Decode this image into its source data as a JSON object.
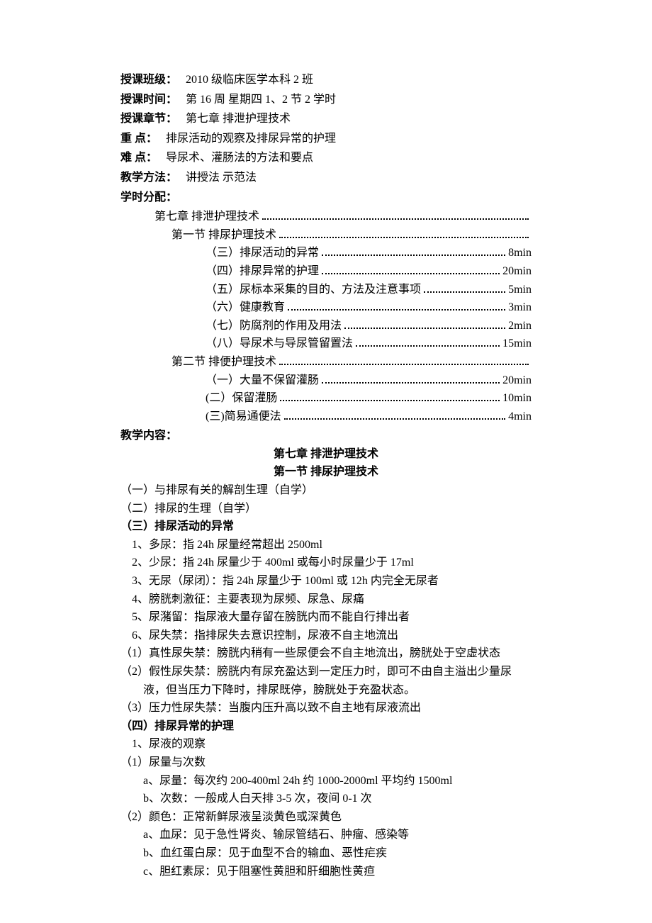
{
  "header": {
    "class_label": "授课班级：",
    "class_value": "2010 级临床医学本科 2 班",
    "time_label": "授课时间：",
    "time_value": "第 16 周  星期四  1、2 节     2 学时",
    "chapter_label": "授课章节：",
    "chapter_value": "第七章    排泄护理技术",
    "focus_label": "重        点：",
    "focus_value": "排尿活动的观察及排尿异常的护理",
    "difficulty_label": "难        点：",
    "difficulty_value": "导尿术、灌肠法的方法和要点",
    "method_label": "教学方法：",
    "method_value": "讲授法        示范法",
    "alloc_label": "学时分配："
  },
  "toc": [
    {
      "indent": 1,
      "text": "第七章    排泄护理技术",
      "time": ""
    },
    {
      "indent": 2,
      "text": "第一节    排尿护理技术",
      "time": ""
    },
    {
      "indent": 3,
      "text": "（三）排尿活动的异常",
      "time": "8min"
    },
    {
      "indent": 3,
      "text": "（四）排尿异常的护理",
      "time": "20min"
    },
    {
      "indent": 3,
      "text": "（五）尿标本采集的目的、方法及注意事项",
      "time": "5min"
    },
    {
      "indent": 3,
      "text": "（六）健康教育",
      "time": "3min"
    },
    {
      "indent": 3,
      "text": "（七）防腐剂的作用及用法",
      "time": "2min"
    },
    {
      "indent": 3,
      "text": "（八）导尿术与导尿管留置法",
      "time": "15min"
    },
    {
      "indent": 2,
      "text": "第二节    排便护理技术",
      "time": ""
    },
    {
      "indent": 3,
      "text": "（一）大量不保留灌肠",
      "time": "20min"
    },
    {
      "indent": 3,
      "text": "(二）保留灌肠",
      "time": "10min"
    },
    {
      "indent": 3,
      "text": "(三)简易通便法",
      "time": "4min"
    }
  ],
  "content_label": "教学内容：",
  "titles": {
    "chapter": "第七章    排泄护理技术",
    "section": "第一节    排尿护理技术"
  },
  "body": [
    {
      "pad": 0,
      "bold": false,
      "text": "（一）与排尿有关的解剖生理（自学）"
    },
    {
      "pad": 0,
      "bold": false,
      "text": "（二）排尿的生理（自学）"
    },
    {
      "pad": 0,
      "bold": true,
      "text": "（三）排尿活动的异常"
    },
    {
      "pad": 1,
      "bold": false,
      "text": "1、多尿：指 24h 尿量经常超出 2500ml"
    },
    {
      "pad": 1,
      "bold": false,
      "text": "2、少尿：指 24h 尿量少于 400ml 或每小时尿量少于 17ml"
    },
    {
      "pad": 1,
      "bold": false,
      "text": "3、无尿（尿闭）：指 24h 尿量少于 100ml 或 12h 内完全无尿者"
    },
    {
      "pad": 1,
      "bold": false,
      "text": "4、膀胱刺激征：主要表现为尿频、尿急、尿痛"
    },
    {
      "pad": 1,
      "bold": false,
      "text": "5、尿潴留：指尿液大量存留在膀胱内而不能自行排出者"
    },
    {
      "pad": 1,
      "bold": false,
      "text": "6、尿失禁：指排尿失去意识控制，尿液不自主地流出"
    },
    {
      "pad": 0,
      "bold": false,
      "text": "（1）真性尿失禁：膀胱内稍有一些尿便会不自主地流出，膀胱处于空虚状态"
    },
    {
      "pad": 0,
      "bold": false,
      "text": "（2）假性尿失禁：膀胱内有尿充盈达到一定压力时，即可不由自主溢出少量尿"
    },
    {
      "pad": 2,
      "bold": false,
      "text": "液，但当压力下降时，排尿既停，膀胱处于充盈状态。"
    },
    {
      "pad": 0,
      "bold": false,
      "text": "（3）压力性尿失禁：当腹内压升高以致不自主地有尿液流出"
    },
    {
      "pad": 0,
      "bold": true,
      "text": "（四）排尿异常的护理"
    },
    {
      "pad": 1,
      "bold": false,
      "text": "1、尿液的观察"
    },
    {
      "pad": 0,
      "bold": false,
      "text": "（1）尿量与次数"
    },
    {
      "pad": 2,
      "bold": false,
      "text": "a、尿量：每次约 200-400ml    24h 约 1000-2000ml    平均约 1500ml"
    },
    {
      "pad": 2,
      "bold": false,
      "text": "b、次数：一般成人白天排 3-5 次，夜间 0-1 次"
    },
    {
      "pad": 0,
      "bold": false,
      "text": "（2）颜色：正常新鲜尿液呈淡黄色或深黄色"
    },
    {
      "pad": 2,
      "bold": false,
      "text": "a、血尿：见于急性肾炎、输尿管结石、肿瘤、感染等"
    },
    {
      "pad": 2,
      "bold": false,
      "text": "b、血红蛋白尿：见于血型不合的输血、恶性疟疾"
    },
    {
      "pad": 2,
      "bold": false,
      "text": "c、胆红素尿：见于阻塞性黄胆和肝细胞性黄疸"
    }
  ]
}
